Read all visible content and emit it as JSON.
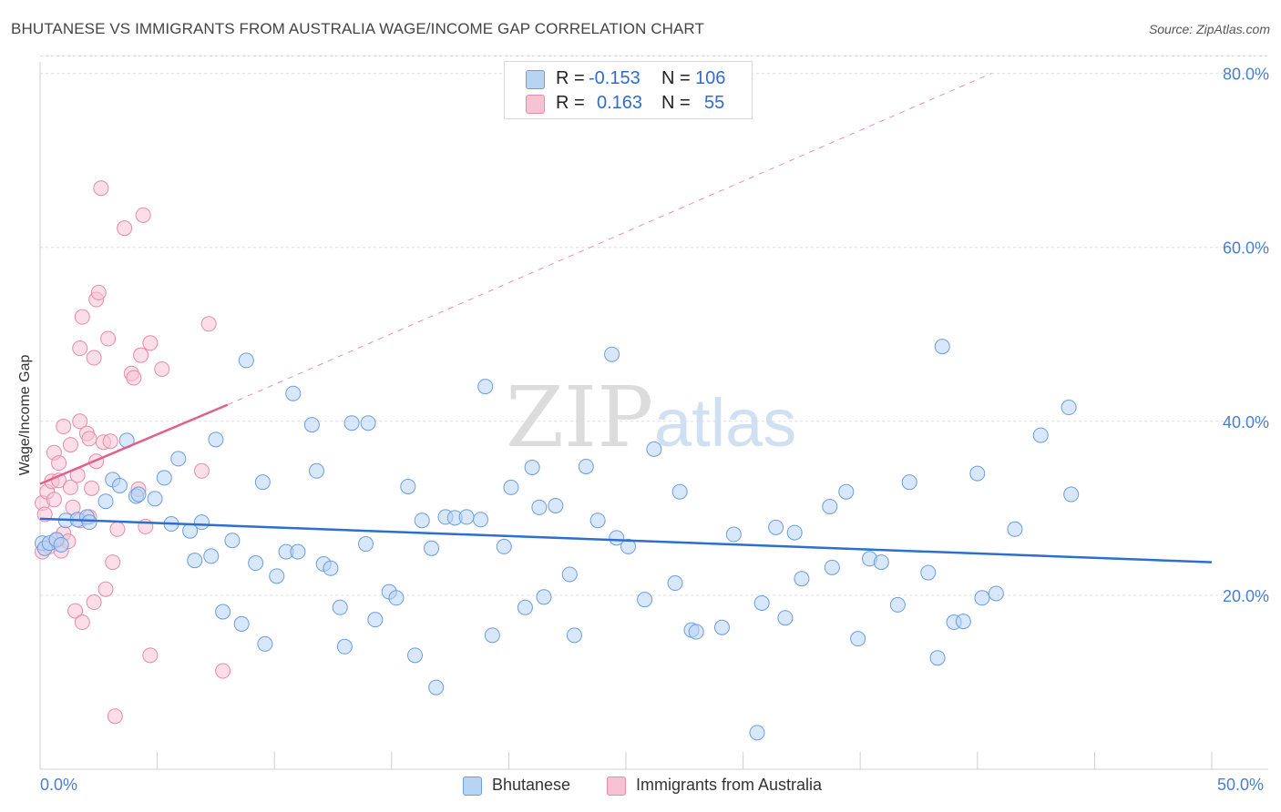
{
  "header": {
    "title": "BHUTANESE VS IMMIGRANTS FROM AUSTRALIA WAGE/INCOME GAP CORRELATION CHART",
    "source": "Source: ZipAtlas.com"
  },
  "watermark": {
    "part1": "ZIP",
    "part2": "atlas"
  },
  "legend": {
    "rows": [
      {
        "r_label": "R =",
        "r_value": "-0.153",
        "n_label": "N =",
        "n_value": "106"
      },
      {
        "r_label": "R =",
        "r_value": "0.163",
        "n_label": "N =",
        "n_value": "55"
      }
    ]
  },
  "bottom_legend": {
    "s1": "Bhutanese",
    "s2": "Immigrants from Australia"
  },
  "axis": {
    "x_min_label": "0.0%",
    "x_max_label": "50.0%"
  },
  "colors": {
    "blue_fill": "#b8d4f5",
    "blue_stroke": "#6a9ee0",
    "blue_line": "#2b6fcf",
    "pink_fill": "#f7c3d3",
    "pink_stroke": "#e88aa8",
    "pink_line": "#e0608c"
  },
  "chart_data": {
    "type": "scatter",
    "title": "BHUTANESE VS IMMIGRANTS FROM AUSTRALIA WAGE/INCOME GAP CORRELATION CHART",
    "xlabel": "",
    "ylabel": "Wage/Income Gap",
    "xlim": [
      0,
      50
    ],
    "ylim": [
      0,
      82
    ],
    "y_ticks": [
      20,
      40,
      60,
      80
    ],
    "y_tick_labels": [
      "20.0%",
      "40.0%",
      "60.0%",
      "80.0%"
    ],
    "x_tick_labels": [
      "0.0%",
      "50.0%"
    ],
    "grid": true,
    "series": [
      {
        "name": "Bhutanese",
        "r": -0.153,
        "n": 106,
        "trend": {
          "x": [
            0,
            50
          ],
          "y": [
            28.8,
            23.8
          ]
        },
        "points": [
          [
            0.1,
            26.0
          ],
          [
            0.2,
            25.4
          ],
          [
            0.4,
            26.0
          ],
          [
            0.7,
            26.4
          ],
          [
            0.9,
            25.8
          ],
          [
            1.1,
            28.6
          ],
          [
            1.6,
            28.7
          ],
          [
            2.0,
            29.0
          ],
          [
            2.1,
            28.4
          ],
          [
            2.8,
            30.8
          ],
          [
            3.1,
            33.3
          ],
          [
            3.4,
            32.6
          ],
          [
            3.7,
            37.8
          ],
          [
            4.1,
            31.4
          ],
          [
            4.2,
            31.6
          ],
          [
            4.9,
            31.1
          ],
          [
            5.3,
            33.5
          ],
          [
            5.6,
            28.2
          ],
          [
            5.9,
            35.7
          ],
          [
            6.4,
            27.4
          ],
          [
            6.6,
            24.0
          ],
          [
            6.9,
            28.4
          ],
          [
            7.3,
            24.5
          ],
          [
            7.5,
            37.9
          ],
          [
            7.8,
            18.1
          ],
          [
            8.2,
            26.3
          ],
          [
            8.6,
            16.7
          ],
          [
            8.8,
            47.0
          ],
          [
            9.2,
            23.7
          ],
          [
            9.5,
            33.0
          ],
          [
            9.6,
            14.4
          ],
          [
            10.1,
            22.2
          ],
          [
            10.5,
            25.0
          ],
          [
            10.8,
            43.2
          ],
          [
            11.0,
            25.0
          ],
          [
            11.6,
            39.6
          ],
          [
            11.8,
            34.3
          ],
          [
            12.1,
            23.6
          ],
          [
            12.4,
            23.1
          ],
          [
            12.8,
            18.6
          ],
          [
            13.0,
            14.1
          ],
          [
            13.3,
            39.8
          ],
          [
            13.9,
            25.9
          ],
          [
            14.0,
            39.8
          ],
          [
            14.3,
            17.2
          ],
          [
            14.9,
            20.4
          ],
          [
            15.2,
            19.7
          ],
          [
            15.7,
            32.5
          ],
          [
            16.0,
            13.1
          ],
          [
            16.3,
            28.6
          ],
          [
            16.7,
            25.4
          ],
          [
            16.9,
            9.4
          ],
          [
            17.3,
            29.0
          ],
          [
            17.7,
            28.9
          ],
          [
            18.2,
            29.0
          ],
          [
            18.8,
            28.7
          ],
          [
            19.0,
            44.0
          ],
          [
            19.3,
            15.4
          ],
          [
            19.8,
            25.6
          ],
          [
            20.1,
            32.4
          ],
          [
            20.7,
            18.6
          ],
          [
            21.0,
            34.7
          ],
          [
            21.3,
            30.1
          ],
          [
            21.5,
            19.8
          ],
          [
            22.0,
            30.3
          ],
          [
            22.6,
            22.4
          ],
          [
            22.8,
            15.4
          ],
          [
            23.3,
            34.8
          ],
          [
            23.8,
            28.6
          ],
          [
            24.4,
            47.7
          ],
          [
            24.6,
            26.6
          ],
          [
            25.1,
            25.6
          ],
          [
            25.8,
            19.5
          ],
          [
            26.2,
            36.8
          ],
          [
            27.1,
            21.4
          ],
          [
            27.3,
            31.9
          ],
          [
            27.8,
            16.0
          ],
          [
            28.0,
            15.8
          ],
          [
            29.1,
            16.3
          ],
          [
            29.6,
            27.0
          ],
          [
            30.8,
            19.1
          ],
          [
            31.4,
            27.8
          ],
          [
            31.8,
            17.4
          ],
          [
            32.2,
            27.2
          ],
          [
            32.5,
            21.9
          ],
          [
            33.7,
            30.2
          ],
          [
            33.8,
            23.2
          ],
          [
            34.4,
            31.9
          ],
          [
            34.9,
            15.0
          ],
          [
            35.4,
            24.2
          ],
          [
            35.9,
            23.8
          ],
          [
            36.6,
            18.9
          ],
          [
            37.1,
            33.0
          ],
          [
            37.9,
            22.6
          ],
          [
            38.3,
            12.8
          ],
          [
            38.5,
            48.6
          ],
          [
            39.0,
            16.9
          ],
          [
            39.4,
            17.0
          ],
          [
            40.0,
            34.0
          ],
          [
            40.2,
            19.7
          ],
          [
            40.8,
            20.2
          ],
          [
            41.6,
            27.6
          ],
          [
            42.7,
            38.4
          ],
          [
            43.9,
            41.6
          ],
          [
            44.0,
            31.6
          ],
          [
            30.6,
            4.2
          ]
        ]
      },
      {
        "name": "Immigrants from Australia",
        "r": 0.163,
        "n": 55,
        "trend": {
          "x": [
            0,
            8
          ],
          "y": [
            32.8,
            41.9
          ]
        },
        "trend_ext": {
          "x": [
            8,
            40.6
          ],
          "y": [
            41.9,
            80.0
          ]
        },
        "points": [
          [
            0.1,
            25.0
          ],
          [
            0.1,
            30.6
          ],
          [
            0.2,
            29.3
          ],
          [
            0.3,
            31.9
          ],
          [
            0.4,
            25.6
          ],
          [
            0.5,
            33.1
          ],
          [
            0.6,
            31.0
          ],
          [
            0.6,
            36.4
          ],
          [
            0.7,
            26.3
          ],
          [
            0.8,
            35.2
          ],
          [
            0.8,
            33.2
          ],
          [
            0.9,
            25.1
          ],
          [
            1.0,
            27.1
          ],
          [
            1.0,
            39.4
          ],
          [
            1.2,
            26.2
          ],
          [
            1.3,
            32.4
          ],
          [
            1.3,
            37.3
          ],
          [
            1.4,
            30.1
          ],
          [
            1.5,
            18.2
          ],
          [
            1.6,
            33.8
          ],
          [
            1.7,
            40.0
          ],
          [
            1.7,
            48.4
          ],
          [
            1.7,
            28.6
          ],
          [
            1.8,
            16.9
          ],
          [
            1.8,
            52.0
          ],
          [
            2.0,
            38.6
          ],
          [
            2.1,
            38.0
          ],
          [
            2.1,
            29.0
          ],
          [
            2.2,
            32.3
          ],
          [
            2.3,
            47.3
          ],
          [
            2.3,
            19.2
          ],
          [
            2.4,
            54.0
          ],
          [
            2.4,
            35.4
          ],
          [
            2.5,
            54.8
          ],
          [
            2.6,
            66.8
          ],
          [
            2.7,
            37.6
          ],
          [
            2.8,
            20.7
          ],
          [
            2.9,
            49.5
          ],
          [
            3.0,
            37.7
          ],
          [
            3.1,
            23.8
          ],
          [
            3.2,
            6.1
          ],
          [
            3.3,
            27.6
          ],
          [
            3.6,
            62.2
          ],
          [
            3.9,
            45.5
          ],
          [
            4.0,
            45.0
          ],
          [
            4.2,
            32.2
          ],
          [
            4.3,
            47.6
          ],
          [
            4.4,
            63.7
          ],
          [
            4.5,
            27.9
          ],
          [
            4.7,
            13.1
          ],
          [
            4.7,
            49.0
          ],
          [
            5.2,
            46.0
          ],
          [
            6.9,
            34.3
          ],
          [
            7.2,
            51.2
          ],
          [
            7.8,
            11.3
          ]
        ]
      }
    ]
  }
}
